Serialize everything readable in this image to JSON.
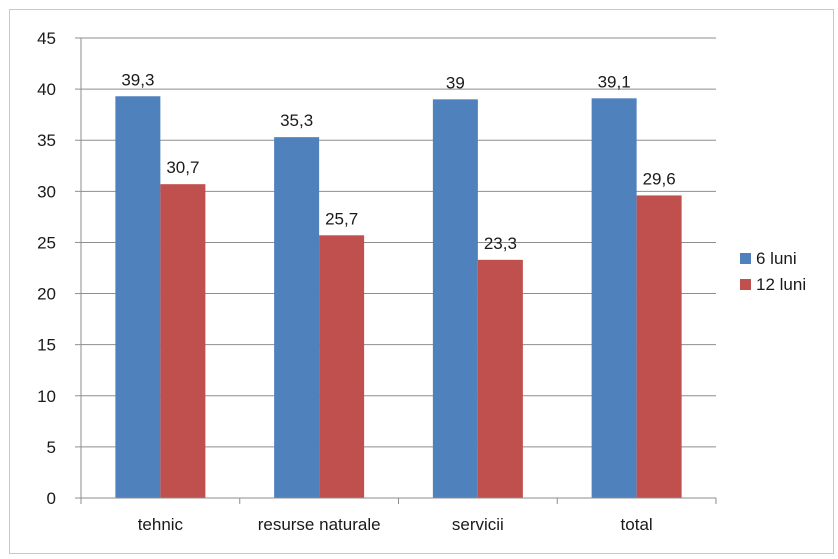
{
  "chart_data": {
    "type": "bar",
    "title": "",
    "xlabel": "",
    "ylabel": "",
    "categories": [
      "tehnic",
      "resurse naturale",
      "servicii",
      "total"
    ],
    "series": [
      {
        "name": "6 luni",
        "values": [
          39.3,
          35.3,
          39,
          39.1
        ],
        "labels": [
          "39,3",
          "35,3",
          "39",
          "39,1"
        ],
        "color": "#4f81bd"
      },
      {
        "name": "12 luni",
        "values": [
          30.7,
          25.7,
          23.3,
          29.6
        ],
        "labels": [
          "30,7",
          "25,7",
          "23,3",
          "29,6"
        ],
        "color": "#c0504d"
      }
    ],
    "ylim": [
      0,
      45
    ],
    "yticks": [
      0,
      5,
      10,
      15,
      20,
      25,
      30,
      35,
      40,
      45
    ],
    "grid": true,
    "legend": "right"
  }
}
